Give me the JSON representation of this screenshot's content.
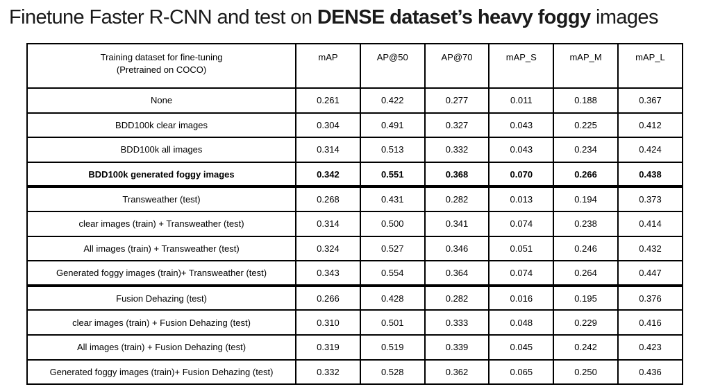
{
  "title": {
    "prefix": "Finetune Faster R-CNN and test on ",
    "bold": "DENSE dataset’s heavy foggy",
    "suffix": " images"
  },
  "table": {
    "header": {
      "col1_line1": "Training dataset for fine-tuning",
      "col1_line2": "(Pretrained on COCO)",
      "metrics": [
        "mAP",
        "AP@50",
        "AP@70",
        "mAP_S",
        "mAP_M",
        "mAP_L"
      ]
    },
    "rows": [
      {
        "label": "None",
        "values": [
          "0.261",
          "0.422",
          "0.277",
          "0.011",
          "0.188",
          "0.367"
        ],
        "bold": false,
        "group_end": false
      },
      {
        "label": "BDD100k clear images",
        "values": [
          "0.304",
          "0.491",
          "0.327",
          "0.043",
          "0.225",
          "0.412"
        ],
        "bold": false,
        "group_end": false
      },
      {
        "label": "BDD100k all images",
        "values": [
          "0.314",
          "0.513",
          "0.332",
          "0.043",
          "0.234",
          "0.424"
        ],
        "bold": false,
        "group_end": false
      },
      {
        "label": "BDD100k generated foggy images",
        "values": [
          "0.342",
          "0.551",
          "0.368",
          "0.070",
          "0.266",
          "0.438"
        ],
        "bold": true,
        "group_end": true
      },
      {
        "label": "Transweather (test)",
        "values": [
          "0.268",
          "0.431",
          "0.282",
          "0.013",
          "0.194",
          "0.373"
        ],
        "bold": false,
        "group_end": false
      },
      {
        "label": "clear images (train) + Transweather (test)",
        "values": [
          "0.314",
          "0.500",
          "0.341",
          "0.074",
          "0.238",
          "0.414"
        ],
        "bold": false,
        "group_end": false
      },
      {
        "label": "All images (train) + Transweather (test)",
        "values": [
          "0.324",
          "0.527",
          "0.346",
          "0.051",
          "0.246",
          "0.432"
        ],
        "bold": false,
        "group_end": false
      },
      {
        "label": "Generated foggy images (train)+ Transweather (test)",
        "values": [
          "0.343",
          "0.554",
          "0.364",
          "0.074",
          "0.264",
          "0.447"
        ],
        "bold": false,
        "group_end": true
      },
      {
        "label": "Fusion Dehazing (test)",
        "values": [
          "0.266",
          "0.428",
          "0.282",
          "0.016",
          "0.195",
          "0.376"
        ],
        "bold": false,
        "group_end": false
      },
      {
        "label": "clear images (train) + Fusion Dehazing (test)",
        "values": [
          "0.310",
          "0.501",
          "0.333",
          "0.048",
          "0.229",
          "0.416"
        ],
        "bold": false,
        "group_end": false
      },
      {
        "label": "All images (train) + Fusion Dehazing (test)",
        "values": [
          "0.319",
          "0.519",
          "0.339",
          "0.045",
          "0.242",
          "0.423"
        ],
        "bold": false,
        "group_end": false
      },
      {
        "label": "Generated foggy images (train)+ Fusion Dehazing (test)",
        "values": [
          "0.332",
          "0.528",
          "0.362",
          "0.065",
          "0.250",
          "0.436"
        ],
        "bold": false,
        "group_end": false
      }
    ],
    "colors": {
      "border": "#000000",
      "text": "#000000",
      "background": "#ffffff",
      "highlight_weight": "bold"
    }
  },
  "chart_data": {
    "type": "table",
    "title": "Finetune Faster R-CNN and test on DENSE dataset’s heavy foggy images",
    "columns": [
      "Training dataset for fine-tuning (Pretrained on COCO)",
      "mAP",
      "AP@50",
      "AP@70",
      "mAP_S",
      "mAP_M",
      "mAP_L"
    ],
    "rows": [
      [
        "None",
        0.261,
        0.422,
        0.277,
        0.011,
        0.188,
        0.367
      ],
      [
        "BDD100k clear images",
        0.304,
        0.491,
        0.327,
        0.043,
        0.225,
        0.412
      ],
      [
        "BDD100k all images",
        0.314,
        0.513,
        0.332,
        0.043,
        0.234,
        0.424
      ],
      [
        "BDD100k generated foggy images",
        0.342,
        0.551,
        0.368,
        0.07,
        0.266,
        0.438
      ],
      [
        "Transweather (test)",
        0.268,
        0.431,
        0.282,
        0.013,
        0.194,
        0.373
      ],
      [
        "clear images (train) + Transweather (test)",
        0.314,
        0.5,
        0.341,
        0.074,
        0.238,
        0.414
      ],
      [
        "All images (train) + Transweather (test)",
        0.324,
        0.527,
        0.346,
        0.051,
        0.246,
        0.432
      ],
      [
        "Generated foggy images (train)+ Transweather (test)",
        0.343,
        0.554,
        0.364,
        0.074,
        0.264,
        0.447
      ],
      [
        "Fusion Dehazing (test)",
        0.266,
        0.428,
        0.282,
        0.016,
        0.195,
        0.376
      ],
      [
        "clear images (train) + Fusion Dehazing (test)",
        0.31,
        0.501,
        0.333,
        0.048,
        0.229,
        0.416
      ],
      [
        "All images (train) + Fusion Dehazing (test)",
        0.319,
        0.519,
        0.339,
        0.045,
        0.242,
        0.423
      ],
      [
        "Generated foggy images (train)+ Fusion Dehazing (test)",
        0.332,
        0.528,
        0.362,
        0.065,
        0.25,
        0.436
      ]
    ],
    "highlighted_row": "BDD100k generated foggy images",
    "group_separators_after_rows": [
      "BDD100k generated foggy images",
      "Generated foggy images (train)+ Transweather (test)"
    ],
    "layout": {
      "grid": true,
      "header_row": true,
      "all_cells_centered": true
    }
  }
}
